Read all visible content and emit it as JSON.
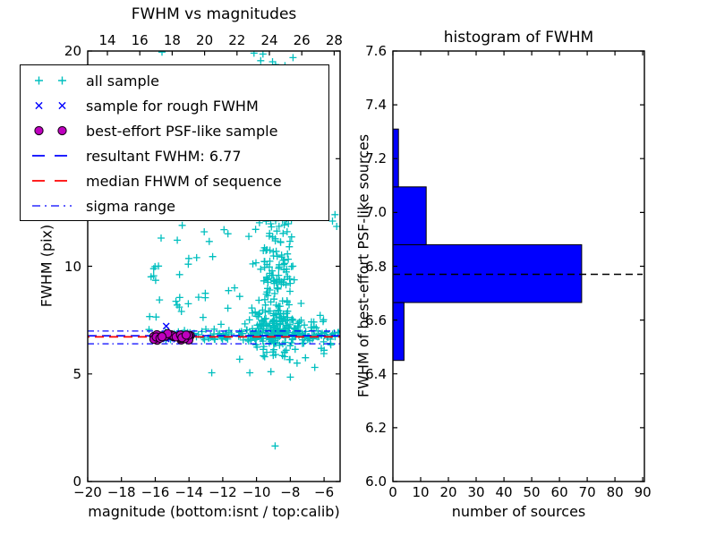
{
  "figure": {
    "bg": "#ffffff"
  },
  "colors": {
    "axis": "#000000",
    "all_sample": "#00bfbf",
    "rough": "#0000ff",
    "psf": "#bf00bf",
    "psf_edge": "#190019",
    "resultant": "#0000ff",
    "median": "#ff0000",
    "sigma": "#0000ff",
    "bar_fill": "#0000ff",
    "bar_edge": "#000000"
  },
  "legend": {
    "items": [
      {
        "label": "all sample",
        "marker": "plus"
      },
      {
        "label": "sample for rough FWHM",
        "marker": "cross"
      },
      {
        "label": "best-effort PSF-like sample",
        "marker": "dot"
      },
      {
        "label": "resultant FWHM: 6.77",
        "marker": "dashed-blue"
      },
      {
        "label": "median FHWM of sequence",
        "marker": "dashed-red"
      },
      {
        "label": "sigma range",
        "marker": "dashdot-blue"
      }
    ]
  },
  "chart_data": [
    {
      "type": "scatter",
      "title": "FWHM vs magnitudes",
      "xlabel": "magnitude (bottom:isnt / top:calib)",
      "ylabel": "FWHM (pix)",
      "xlim": [
        -20,
        -5.05
      ],
      "ylim": [
        0,
        20
      ],
      "x_ticks_bottom": [
        -20,
        -18,
        -16,
        -14,
        -12,
        -10,
        -8,
        -6
      ],
      "x_ticks_bottom_labels": [
        "−20",
        "−18",
        "−16",
        "−14",
        "−12",
        "−10",
        "−8",
        "−6"
      ],
      "x_ticks_top": [
        14,
        16,
        18,
        20,
        22,
        24,
        26,
        28
      ],
      "x_ticks_top_labels": [
        "14",
        "16",
        "18",
        "20",
        "22",
        "24",
        "26",
        "28"
      ],
      "y_ticks": [
        0,
        5,
        10,
        15,
        20
      ],
      "y_tick_labels": [
        "0",
        "5",
        "10",
        "15",
        "20"
      ],
      "resultant_fwhm": 6.77,
      "hlines": [
        {
          "name": "sigma range upper",
          "value": 6.99,
          "style": "dashdot",
          "color_key": "sigma"
        },
        {
          "name": "sigma range lower",
          "value": 6.4,
          "style": "dashdot",
          "color_key": "sigma"
        },
        {
          "name": "resultant FWHM",
          "value": 6.77,
          "style": "dashed",
          "color_key": "resultant"
        },
        {
          "name": "median FHWM of sequence",
          "value": 6.72,
          "style": "dashed",
          "color_key": "median"
        }
      ],
      "series": [
        {
          "name": "all sample",
          "marker": "plus",
          "color_key": "all_sample",
          "seed": 7,
          "clusters": [
            {
              "n": 30,
              "x": [
                "uniform",
                -16.4,
                -13.6
              ],
              "y": [
                "normal",
                6.78,
                0.12,
                6.4,
                7.15
              ]
            },
            {
              "n": 110,
              "x": [
                "uniform",
                -13.6,
                -7.3
              ],
              "y": [
                "normal",
                6.8,
                0.13,
                6.35,
                7.3
              ]
            },
            {
              "n": 35,
              "x": [
                "uniform",
                -7.3,
                -5.1
              ],
              "y": [
                "normal",
                6.75,
                0.16,
                6.3,
                7.2
              ]
            },
            {
              "n": 170,
              "x": [
                "normal",
                -8.8,
                0.75,
                -11.3,
                -7.25
              ],
              "y": [
                "normal",
                7.15,
                0.85,
                5.65,
                9.4
              ]
            },
            {
              "n": 95,
              "x": [
                "normal",
                -8.75,
                0.65,
                -10.6,
                -7.35
              ],
              "y": [
                "uniform",
                8.8,
                12.4
              ]
            },
            {
              "n": 55,
              "x": [
                "normal",
                -8.8,
                0.6,
                -10.3,
                -7.4
              ],
              "y": [
                "uniform",
                12.4,
                20.4
              ]
            },
            {
              "n": 18,
              "x": [
                "uniform",
                -7.4,
                -5.9
              ],
              "y": [
                "normal",
                6.9,
                0.5,
                5.8,
                8.4
              ]
            },
            {
              "n": 10,
              "x": [
                "uniform",
                -16.35,
                -15.55
              ],
              "y": [
                "uniform",
                7.6,
                11.7
              ]
            },
            {
              "n": 14,
              "x": [
                "uniform",
                -14.9,
                -11.4
              ],
              "y": [
                "uniform",
                7.3,
                11.9
              ]
            }
          ],
          "points": [
            [
              -15.6,
              19.95
            ],
            [
              -10.15,
              19.9
            ],
            [
              -9.75,
              19.55
            ],
            [
              -9.45,
              20.2
            ],
            [
              -9.05,
              19.5
            ],
            [
              -14.4,
              11.9
            ],
            [
              -13.1,
              11.6
            ],
            [
              -12.8,
              11.15
            ],
            [
              -12.6,
              10.45
            ],
            [
              -13.55,
              10.4
            ],
            [
              -11.3,
              9.0
            ],
            [
              -11.0,
              8.6
            ],
            [
              -11.7,
              8.05
            ],
            [
              -12.1,
              7.3
            ],
            [
              -12.65,
              5.05
            ],
            [
              -10.4,
              5.05
            ],
            [
              -9.15,
              5.1
            ],
            [
              -8.0,
              4.85
            ],
            [
              -6.55,
              5.3
            ],
            [
              -7.1,
              5.75
            ],
            [
              -7.6,
              5.5
            ],
            [
              -6.0,
              6.1
            ],
            [
              -5.6,
              6.35
            ],
            [
              -8.9,
              1.65
            ],
            [
              -5.5,
              12.1
            ],
            [
              -5.25,
              11.85
            ],
            [
              -5.35,
              12.4
            ],
            [
              -14.55,
              8.55
            ],
            [
              -14.7,
              8.2
            ],
            [
              -14.45,
              7.9
            ]
          ]
        },
        {
          "name": "sample for rough FWHM",
          "marker": "cross",
          "color_key": "rough",
          "seed": 11,
          "clusters": [
            {
              "n": 13,
              "x": [
                "uniform",
                -16.05,
                -14.3
              ],
              "y": [
                "normal",
                6.75,
                0.1,
                6.55,
                6.95
              ]
            }
          ],
          "points": [
            [
              -15.35,
              7.22
            ]
          ]
        },
        {
          "name": "best-effort PSF-like sample",
          "marker": "dot",
          "color_key": "psf",
          "seed": 23,
          "clusters": [
            {
              "n": 28,
              "x": [
                "uniform",
                -16.1,
                -13.8
              ],
              "y": [
                "normal",
                6.72,
                0.1,
                6.52,
                6.93
              ]
            }
          ],
          "points": []
        }
      ]
    },
    {
      "type": "barh",
      "title": "histogram of FWHM",
      "xlabel": "number of sources",
      "ylabel": "FWHM of best-effort PSF-like sources",
      "xlim": [
        0,
        90.6
      ],
      "ylim": [
        6.0,
        7.6
      ],
      "x_ticks": [
        0,
        10,
        20,
        30,
        40,
        50,
        60,
        70,
        80,
        90
      ],
      "y_ticks": [
        6.0,
        6.2,
        6.4,
        6.6,
        6.8,
        7.0,
        7.2,
        7.4,
        7.6
      ],
      "y_tick_labels": [
        "6.0",
        "6.2",
        "6.4",
        "6.6",
        "6.8",
        "7.0",
        "7.2",
        "7.4",
        "7.6"
      ],
      "bin_edges": [
        6.45,
        6.665,
        6.88,
        7.095,
        7.31
      ],
      "counts": [
        4,
        68,
        12,
        2
      ],
      "median_line": {
        "value": 6.77,
        "style": "dashed",
        "color": "#000000"
      }
    }
  ]
}
